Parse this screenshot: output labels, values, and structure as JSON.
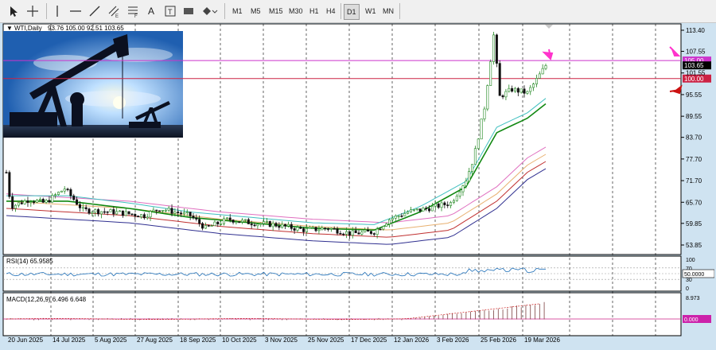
{
  "toolbar": {
    "tools": [
      "cursor-icon",
      "crosshair-icon",
      "vertical-line-icon",
      "horizontal-line-icon",
      "trend-line-icon",
      "channel-icon",
      "fibonacci-icon",
      "text-icon",
      "text-label-icon",
      "rectangle-icon",
      "shapes-icon"
    ],
    "timeframes": [
      "M1",
      "M5",
      "M15",
      "M30",
      "H1",
      "H4",
      "D1",
      "W1",
      "MN"
    ],
    "active_timeframe": "D1"
  },
  "main": {
    "label": "WTI,Daily",
    "ohlc": "93.76 105.00 92.51 103.65"
  },
  "image": {
    "description": "oil-pump-jack-photo"
  },
  "rsi": {
    "label": "RSI(14) 65.9585",
    "scale": [
      "100",
      "70",
      "50",
      "30",
      "0"
    ],
    "level": "50.0000"
  },
  "macd": {
    "label": "MACD(12,26,9) 6.496 6.648",
    "top": "8.973",
    "zero": "0.000"
  },
  "price_axis": {
    "labels": [
      "113.40",
      "107.55",
      "101.55",
      "95.55",
      "89.55",
      "83.70",
      "77.70",
      "71.70",
      "65.70",
      "59.85",
      "53.85"
    ],
    "hline_upper": "105.00",
    "hline_lower": "100.00",
    "current": "103.65"
  },
  "date_axis": [
    "20 Jun 2025",
    "14 Jul 2025",
    "5 Aug 2025",
    "27 Aug 2025",
    "18 Sep 2025",
    "10 Oct 2025",
    "3 Nov 2025",
    "25 Nov 2025",
    "17 Dec 2025",
    "12 Jan 2026",
    "3 Feb 2026",
    "25 Feb 2026",
    "19 Mar 2026"
  ],
  "colors": {
    "upper_line": "#cc33cc",
    "lower_line": "#cc2244",
    "arrow": "#ff33cc",
    "bull": "#228822",
    "bear": "#111111"
  },
  "chart_data": {
    "type": "candlestick",
    "dates": [
      "20 Jun 2025",
      "14 Jul 2025",
      "5 Aug 2025",
      "27 Aug 2025",
      "18 Sep 2025",
      "10 Oct 2025",
      "3 Nov 2025",
      "25 Nov 2025",
      "17 Dec 2025",
      "12 Jan 2026",
      "3 Feb 2026",
      "25 Feb 2026",
      "19 Mar 2026"
    ],
    "close_series": [
      [
        0,
        74
      ],
      [
        3,
        64.5
      ],
      [
        15,
        66.5
      ],
      [
        25,
        65.5
      ],
      [
        38,
        69.5
      ],
      [
        50,
        63.5
      ],
      [
        70,
        63
      ],
      [
        90,
        62
      ],
      [
        100,
        64
      ],
      [
        120,
        62
      ],
      [
        130,
        58.5
      ],
      [
        145,
        61
      ],
      [
        160,
        60
      ],
      [
        175,
        59.5
      ],
      [
        195,
        58
      ],
      [
        210,
        58.5
      ],
      [
        225,
        57
      ],
      [
        240,
        57.5
      ],
      [
        250,
        61
      ],
      [
        262,
        63
      ],
      [
        275,
        64
      ],
      [
        290,
        65.5
      ],
      [
        300,
        72
      ],
      [
        305,
        78
      ],
      [
        312,
        92
      ],
      [
        318,
        112
      ],
      [
        322,
        95
      ],
      [
        330,
        97
      ],
      [
        340,
        96
      ],
      [
        345,
        99
      ],
      [
        352,
        103.65
      ]
    ],
    "ma_fast": [
      [
        0,
        66
      ],
      [
        40,
        66
      ],
      [
        80,
        64
      ],
      [
        120,
        61.5
      ],
      [
        160,
        60
      ],
      [
        200,
        58.5
      ],
      [
        240,
        58
      ],
      [
        270,
        63
      ],
      [
        300,
        70
      ],
      [
        320,
        85
      ],
      [
        340,
        89
      ],
      [
        352,
        93
      ]
    ],
    "ma_slow": [
      [
        0,
        68
      ],
      [
        80,
        66
      ],
      [
        140,
        63
      ],
      [
        200,
        61
      ],
      [
        250,
        60
      ],
      [
        290,
        62
      ],
      [
        320,
        70
      ],
      [
        340,
        78
      ],
      [
        352,
        81
      ]
    ],
    "rsi": {
      "value": 65.9585,
      "levels": [
        70,
        50,
        30
      ]
    },
    "macd": {
      "main": 6.496,
      "signal": 6.648,
      "top": 8.973
    },
    "hlines": [
      105.0,
      100.0
    ],
    "ylim": [
      53.85,
      113.4
    ]
  }
}
